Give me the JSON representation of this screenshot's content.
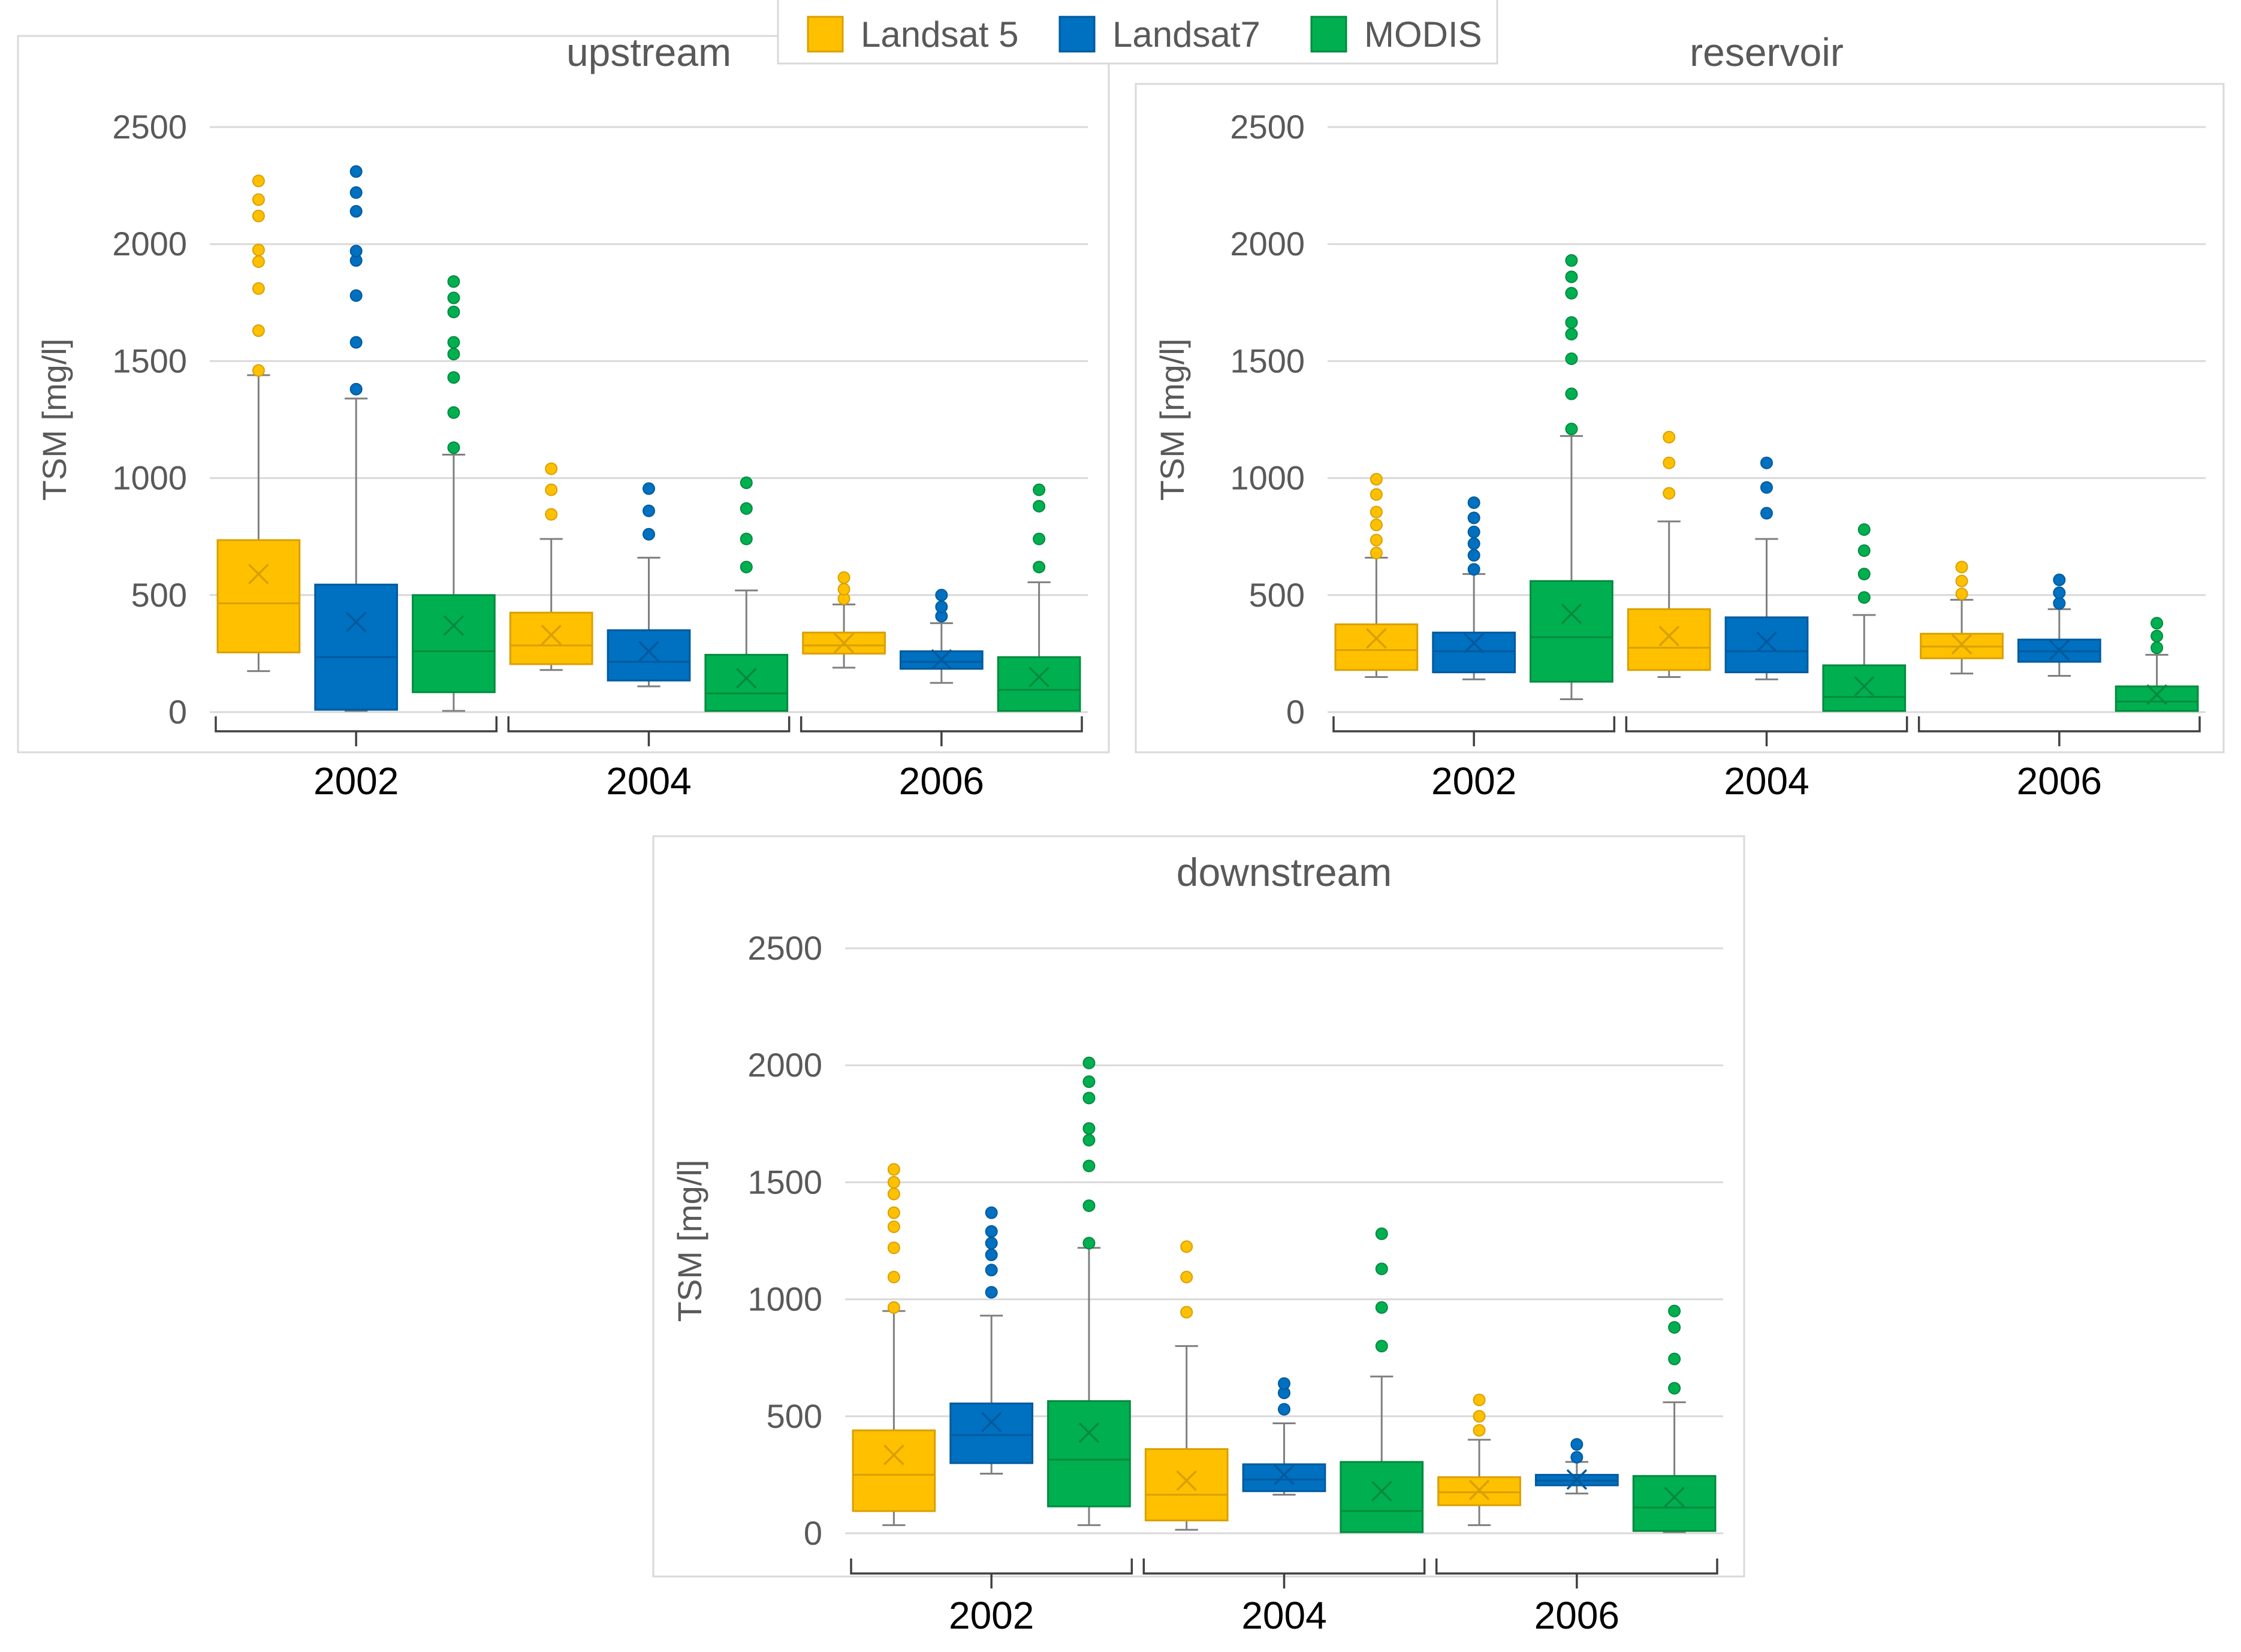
{
  "colors": {
    "Landsat 5": {
      "fill": "#FFC000",
      "edge": "#D9A000"
    },
    "Landsat7": {
      "fill": "#0070C0",
      "edge": "#005A9E"
    },
    "MODIS": {
      "fill": "#00B050",
      "edge": "#008A3E"
    }
  },
  "legend": {
    "placement": "top-center",
    "items": [
      {
        "name": "Landsat 5",
        "label": "Landsat 5"
      },
      {
        "name": "Landsat7",
        "label": "Landsat7"
      },
      {
        "name": "MODIS",
        "label": "MODIS"
      }
    ]
  },
  "chart_data": [
    {
      "type": "box",
      "title": "upstream",
      "ylabel": "TSM [mg/l]",
      "ylim": [
        0,
        2500
      ],
      "yticks": [
        "0",
        "500",
        "1000",
        "1500",
        "2000",
        "2500"
      ],
      "grid": true,
      "categories": [
        "2002",
        "2004",
        "2006"
      ],
      "series": [
        {
          "name": "Landsat 5",
          "boxes": [
            {
              "min": 175,
              "q1": 255,
              "median": 465,
              "q3": 735,
              "max": 1440,
              "mean": 590,
              "outliers": [
                1460,
                1630,
                1810,
                1925,
                1975,
                2120,
                2190,
                2270
              ]
            },
            {
              "min": 180,
              "q1": 205,
              "median": 285,
              "q3": 425,
              "max": 740,
              "mean": 330,
              "outliers": [
                845,
                950,
                1040
              ]
            },
            {
              "min": 190,
              "q1": 250,
              "median": 285,
              "q3": 340,
              "max": 460,
              "mean": 295,
              "outliers": [
                485,
                525,
                575
              ]
            }
          ]
        },
        {
          "name": "Landsat7",
          "boxes": [
            {
              "min": 5,
              "q1": 10,
              "median": 235,
              "q3": 545,
              "max": 1340,
              "mean": 385,
              "outliers": [
                1380,
                1580,
                1780,
                1930,
                1970,
                2140,
                2220,
                2310
              ]
            },
            {
              "min": 110,
              "q1": 135,
              "median": 215,
              "q3": 350,
              "max": 660,
              "mean": 260,
              "outliers": [
                760,
                860,
                955
              ]
            },
            {
              "min": 125,
              "q1": 185,
              "median": 215,
              "q3": 260,
              "max": 380,
              "mean": 225,
              "outliers": [
                410,
                450,
                500
              ]
            }
          ]
        },
        {
          "name": "MODIS",
          "boxes": [
            {
              "min": 5,
              "q1": 85,
              "median": 260,
              "q3": 500,
              "max": 1100,
              "mean": 370,
              "outliers": [
                1130,
                1280,
                1430,
                1530,
                1580,
                1710,
                1770,
                1840
              ]
            },
            {
              "min": 5,
              "q1": 5,
              "median": 80,
              "q3": 245,
              "max": 520,
              "mean": 145,
              "outliers": [
                620,
                740,
                870,
                980
              ]
            },
            {
              "min": 5,
              "q1": 5,
              "median": 95,
              "q3": 235,
              "max": 555,
              "mean": 150,
              "outliers": [
                620,
                740,
                880,
                950
              ]
            }
          ]
        }
      ]
    },
    {
      "type": "box",
      "title": "reservoir",
      "ylabel": "TSM [mg/l]",
      "ylim": [
        0,
        2500
      ],
      "yticks": [
        "0",
        "500",
        "1000",
        "1500",
        "2000",
        "2500"
      ],
      "grid": true,
      "categories": [
        "2002",
        "2004",
        "2006"
      ],
      "series": [
        {
          "name": "Landsat 5",
          "boxes": [
            {
              "min": 150,
              "q1": 180,
              "median": 265,
              "q3": 375,
              "max": 660,
              "mean": 315,
              "outliers": [
                680,
                735,
                800,
                855,
                930,
                995
              ]
            },
            {
              "min": 150,
              "q1": 180,
              "median": 275,
              "q3": 440,
              "max": 815,
              "mean": 325,
              "outliers": [
                935,
                1065,
                1175
              ]
            },
            {
              "min": 165,
              "q1": 230,
              "median": 280,
              "q3": 335,
              "max": 480,
              "mean": 290,
              "outliers": [
                505,
                560,
                620
              ]
            }
          ]
        },
        {
          "name": "Landsat7",
          "boxes": [
            {
              "min": 140,
              "q1": 170,
              "median": 260,
              "q3": 340,
              "max": 590,
              "mean": 295,
              "outliers": [
                610,
                670,
                720,
                770,
                830,
                895
              ]
            },
            {
              "min": 140,
              "q1": 170,
              "median": 260,
              "q3": 405,
              "max": 740,
              "mean": 300,
              "outliers": [
                850,
                960,
                1065
              ]
            },
            {
              "min": 155,
              "q1": 215,
              "median": 260,
              "q3": 310,
              "max": 440,
              "mean": 265,
              "outliers": [
                465,
                510,
                565
              ]
            }
          ]
        },
        {
          "name": "MODIS",
          "boxes": [
            {
              "min": 55,
              "q1": 130,
              "median": 320,
              "q3": 560,
              "max": 1180,
              "mean": 420,
              "outliers": [
                1210,
                1360,
                1510,
                1615,
                1665,
                1790,
                1860,
                1930
              ]
            },
            {
              "min": 5,
              "q1": 5,
              "median": 65,
              "q3": 200,
              "max": 415,
              "mean": 110,
              "outliers": [
                490,
                590,
                690,
                780
              ]
            },
            {
              "min": 5,
              "q1": 5,
              "median": 45,
              "q3": 110,
              "max": 245,
              "mean": 75,
              "outliers": [
                275,
                325,
                380
              ]
            }
          ]
        }
      ]
    },
    {
      "type": "box",
      "title": "downstream",
      "ylabel": "TSM [mg/l]",
      "ylim": [
        0,
        2500
      ],
      "yticks": [
        "0",
        "500",
        "1000",
        "1500",
        "2000",
        "2500"
      ],
      "grid": true,
      "categories": [
        "2002",
        "2004",
        "2006"
      ],
      "series": [
        {
          "name": "Landsat 5",
          "boxes": [
            {
              "min": 35,
              "q1": 95,
              "median": 250,
              "q3": 440,
              "max": 950,
              "mean": 335,
              "outliers": [
                965,
                1095,
                1220,
                1310,
                1370,
                1450,
                1500,
                1555
              ]
            },
            {
              "min": 15,
              "q1": 55,
              "median": 165,
              "q3": 360,
              "max": 800,
              "mean": 225,
              "outliers": [
                945,
                1095,
                1225
              ]
            },
            {
              "min": 35,
              "q1": 120,
              "median": 175,
              "q3": 240,
              "max": 400,
              "mean": 185,
              "outliers": [
                440,
                500,
                570
              ]
            }
          ]
        },
        {
          "name": "Landsat7",
          "boxes": [
            {
              "min": 255,
              "q1": 300,
              "median": 420,
              "q3": 555,
              "max": 930,
              "mean": 475,
              "outliers": [
                1030,
                1125,
                1190,
                1240,
                1290,
                1370
              ]
            },
            {
              "min": 165,
              "q1": 180,
              "median": 230,
              "q3": 295,
              "max": 470,
              "mean": 250,
              "outliers": [
                530,
                600,
                640
              ]
            },
            {
              "min": 170,
              "q1": 205,
              "median": 225,
              "q3": 250,
              "max": 305,
              "mean": 230,
              "outliers": [
                325,
                380
              ]
            }
          ]
        },
        {
          "name": "MODIS",
          "boxes": [
            {
              "min": 35,
              "q1": 115,
              "median": 315,
              "q3": 565,
              "max": 1220,
              "mean": 430,
              "outliers": [
                1240,
                1400,
                1570,
                1680,
                1730,
                1860,
                1930,
                2010
              ]
            },
            {
              "min": 5,
              "q1": 5,
              "median": 95,
              "q3": 305,
              "max": 670,
              "mean": 180,
              "outliers": [
                800,
                965,
                1130,
                1280
              ]
            },
            {
              "min": 5,
              "q1": 10,
              "median": 110,
              "q3": 245,
              "max": 560,
              "mean": 155,
              "outliers": [
                620,
                745,
                880,
                950
              ]
            }
          ]
        }
      ]
    }
  ]
}
